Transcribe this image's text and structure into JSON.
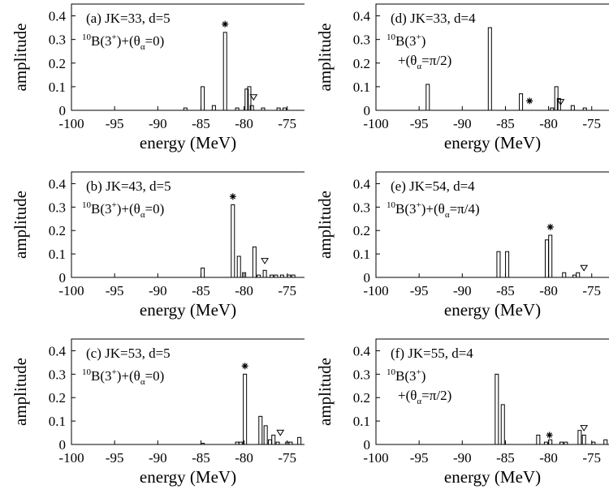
{
  "chart_data": [
    {
      "type": "bar",
      "panel_label": "(a) JK=33, d=5",
      "formula": {
        "mass": "10",
        "element": "B",
        "charge": "3",
        "sup_plus": "+",
        "angle": "0"
      },
      "xlabel": "energy (MeV)",
      "ylabel": "amplitude",
      "xlim": [
        -100,
        -73
      ],
      "ylim": [
        0,
        0.45
      ],
      "xticks": [
        -100,
        -95,
        -90,
        -85,
        -80,
        -75
      ],
      "yticks": [
        0,
        0.1,
        0.2,
        0.3,
        0.4
      ],
      "bars": [
        {
          "x": -86.8,
          "y": 0.01
        },
        {
          "x": -84.8,
          "y": 0.1
        },
        {
          "x": -83.5,
          "y": 0.02
        },
        {
          "x": -82.2,
          "y": 0.33
        },
        {
          "x": -80.8,
          "y": 0.01
        },
        {
          "x": -79.7,
          "y": 0.09
        },
        {
          "x": -79.4,
          "y": 0.1
        },
        {
          "x": -79.1,
          "y": 0.02
        },
        {
          "x": -77.8,
          "y": 0.01
        },
        {
          "x": -76.0,
          "y": 0.01
        },
        {
          "x": -75.3,
          "y": 0.01
        }
      ],
      "markers": [
        {
          "symbol": "star",
          "x": -82.2,
          "y": 0.365
        },
        {
          "symbol": "triangle",
          "x": -78.9,
          "y": 0.055
        }
      ]
    },
    {
      "type": "bar",
      "panel_label": "(d) JK=33, d=4",
      "formula": {
        "mass": "10",
        "element": "B",
        "charge": "3",
        "sup_plus": "+",
        "angle": "π/2",
        "line2_prefix": "+"
      },
      "xlabel": "energy (MeV)",
      "ylabel": "amplitude",
      "xlim": [
        -100,
        -73
      ],
      "ylim": [
        0,
        0.45
      ],
      "xticks": [
        -100,
        -95,
        -90,
        -85,
        -80,
        -75
      ],
      "yticks": [
        0,
        0.1,
        0.2,
        0.3,
        0.4
      ],
      "bars": [
        {
          "x": -94.0,
          "y": 0.11
        },
        {
          "x": -86.8,
          "y": 0.35
        },
        {
          "x": -83.2,
          "y": 0.07
        },
        {
          "x": -79.6,
          "y": 0.01
        },
        {
          "x": -79.1,
          "y": 0.1
        },
        {
          "x": -78.8,
          "y": 0.05
        },
        {
          "x": -77.2,
          "y": 0.02
        },
        {
          "x": -75.8,
          "y": 0.01
        }
      ],
      "markers": [
        {
          "symbol": "star",
          "x": -82.2,
          "y": 0.04
        },
        {
          "symbol": "triangle",
          "x": -78.6,
          "y": 0.035
        }
      ]
    },
    {
      "type": "bar",
      "panel_label": "(b) JK=43, d=5",
      "formula": {
        "mass": "10",
        "element": "B",
        "charge": "3",
        "sup_plus": "+",
        "angle": "0"
      },
      "xlabel": "energy (MeV)",
      "ylabel": "amplitude",
      "xlim": [
        -100,
        -73
      ],
      "ylim": [
        0,
        0.45
      ],
      "xticks": [
        -100,
        -95,
        -90,
        -85,
        -80,
        -75
      ],
      "yticks": [
        0,
        0.1,
        0.2,
        0.3,
        0.4
      ],
      "bars": [
        {
          "x": -84.8,
          "y": 0.04
        },
        {
          "x": -81.3,
          "y": 0.31
        },
        {
          "x": -80.6,
          "y": 0.09
        },
        {
          "x": -80.0,
          "y": 0.02
        },
        {
          "x": -78.8,
          "y": 0.13
        },
        {
          "x": -78.3,
          "y": 0.01
        },
        {
          "x": -77.6,
          "y": 0.03
        },
        {
          "x": -76.8,
          "y": 0.01
        },
        {
          "x": -76.3,
          "y": 0.01
        },
        {
          "x": -75.6,
          "y": 0.01
        },
        {
          "x": -74.8,
          "y": 0.01
        },
        {
          "x": -74.3,
          "y": 0.01
        }
      ],
      "markers": [
        {
          "symbol": "star",
          "x": -81.3,
          "y": 0.345
        },
        {
          "symbol": "triangle",
          "x": -77.6,
          "y": 0.07
        }
      ]
    },
    {
      "type": "bar",
      "panel_label": "(e) JK=54, d=4",
      "formula": {
        "mass": "10",
        "element": "B",
        "charge": "3",
        "sup_plus": "+",
        "angle": "π/4"
      },
      "xlabel": "energy (MeV)",
      "ylabel": "amplitude",
      "xlim": [
        -100,
        -73
      ],
      "ylim": [
        0,
        0.45
      ],
      "xticks": [
        -100,
        -95,
        -90,
        -85,
        -80,
        -75
      ],
      "yticks": [
        0,
        0.1,
        0.2,
        0.3,
        0.4
      ],
      "bars": [
        {
          "x": -85.8,
          "y": 0.11
        },
        {
          "x": -84.8,
          "y": 0.11
        },
        {
          "x": -80.2,
          "y": 0.16
        },
        {
          "x": -79.8,
          "y": 0.18
        },
        {
          "x": -78.2,
          "y": 0.02
        },
        {
          "x": -77.0,
          "y": 0.01
        },
        {
          "x": -76.6,
          "y": 0.02
        }
      ],
      "markers": [
        {
          "symbol": "star",
          "x": -79.8,
          "y": 0.215
        },
        {
          "symbol": "triangle",
          "x": -75.9,
          "y": 0.04
        }
      ]
    },
    {
      "type": "bar",
      "panel_label": "(c) JK=53, d=5",
      "formula": {
        "mass": "10",
        "element": "B",
        "charge": "3",
        "sup_plus": "+",
        "angle": "0"
      },
      "xlabel": "energy (MeV)",
      "ylabel": "amplitude",
      "xlim": [
        -100,
        -73
      ],
      "ylim": [
        0,
        0.45
      ],
      "xticks": [
        -100,
        -95,
        -90,
        -85,
        -80,
        -75
      ],
      "yticks": [
        0,
        0.1,
        0.2,
        0.3,
        0.4
      ],
      "bars": [
        {
          "x": -84.8,
          "y": 0.005
        },
        {
          "x": -80.8,
          "y": 0.01
        },
        {
          "x": -80.4,
          "y": 0.01
        },
        {
          "x": -79.9,
          "y": 0.3
        },
        {
          "x": -78.1,
          "y": 0.12
        },
        {
          "x": -77.5,
          "y": 0.08
        },
        {
          "x": -77.0,
          "y": 0.02
        },
        {
          "x": -76.6,
          "y": 0.04
        },
        {
          "x": -76.1,
          "y": 0.01
        },
        {
          "x": -75.0,
          "y": 0.01
        },
        {
          "x": -74.6,
          "y": 0.01
        },
        {
          "x": -73.6,
          "y": 0.03
        }
      ],
      "markers": [
        {
          "symbol": "star",
          "x": -79.9,
          "y": 0.335
        },
        {
          "symbol": "triangle",
          "x": -75.8,
          "y": 0.05
        }
      ]
    },
    {
      "type": "bar",
      "panel_label": "(f) JK=55, d=4",
      "formula": {
        "mass": "10",
        "element": "B",
        "charge": "3",
        "sup_plus": "+",
        "angle": "π/2",
        "line2_prefix": "+"
      },
      "xlabel": "energy (MeV)",
      "ylabel": "amplitude",
      "xlim": [
        -100,
        -73
      ],
      "ylim": [
        0,
        0.45
      ],
      "xticks": [
        -100,
        -95,
        -90,
        -85,
        -80,
        -75
      ],
      "yticks": [
        0,
        0.1,
        0.2,
        0.3,
        0.4
      ],
      "bars": [
        {
          "x": -86.0,
          "y": 0.3
        },
        {
          "x": -85.3,
          "y": 0.17
        },
        {
          "x": -81.2,
          "y": 0.04
        },
        {
          "x": -80.3,
          "y": 0.01
        },
        {
          "x": -79.8,
          "y": 0.02
        },
        {
          "x": -78.5,
          "y": 0.01
        },
        {
          "x": -78.0,
          "y": 0.01
        },
        {
          "x": -76.4,
          "y": 0.06
        },
        {
          "x": -75.9,
          "y": 0.04
        },
        {
          "x": -74.8,
          "y": 0.01
        },
        {
          "x": -73.4,
          "y": 0.02
        }
      ],
      "markers": [
        {
          "symbol": "star",
          "x": -79.9,
          "y": 0.04
        },
        {
          "symbol": "triangle",
          "x": -75.9,
          "y": 0.07
        }
      ]
    }
  ]
}
